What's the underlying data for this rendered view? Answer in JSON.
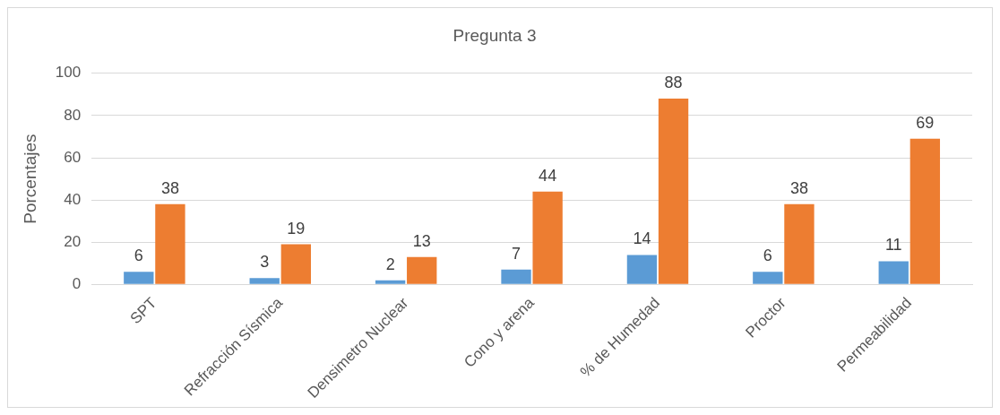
{
  "chart_data": {
    "type": "bar",
    "title": "Pregunta 3",
    "ylabel": "Porcentajes",
    "categories": [
      "SPT",
      "Refracción Sísmica",
      "Densimetro Nuclear",
      "Cono y arena",
      "% de Humedad",
      "Proctor",
      "Permeabilidad"
    ],
    "series": [
      {
        "color": "#5b9bd5",
        "values": [
          6,
          3,
          2,
          7,
          14,
          6,
          11
        ]
      },
      {
        "color": "#ed7d31",
        "values": [
          38,
          19,
          13,
          44,
          88,
          38,
          69
        ]
      }
    ],
    "ylim": [
      0,
      100
    ],
    "yticks": [
      0,
      20,
      40,
      60,
      80,
      100
    ],
    "grid": "y",
    "legend": false,
    "data_labels": true
  }
}
